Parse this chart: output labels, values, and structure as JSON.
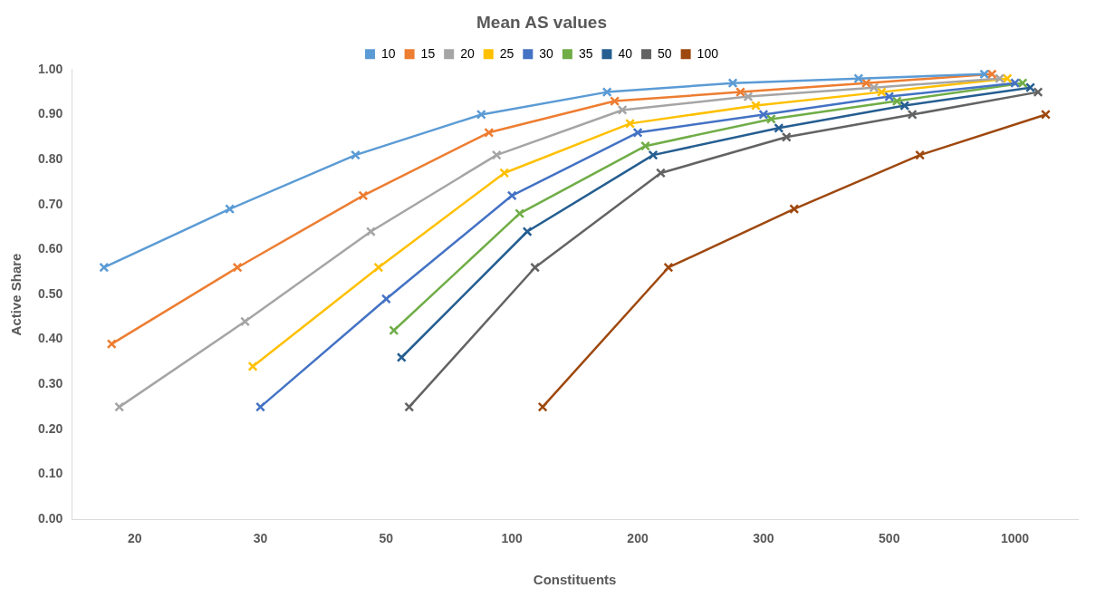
{
  "chart_data": {
    "type": "line",
    "title": "Mean AS values",
    "xlabel": "Constituents",
    "ylabel": "Active Share",
    "categories": [
      "20",
      "30",
      "50",
      "100",
      "200",
      "300",
      "500",
      "1000"
    ],
    "ylim": [
      0,
      1
    ],
    "yticks": [
      {
        "value": 0,
        "label": "0.00"
      },
      {
        "value": 0.1,
        "label": "0.10"
      },
      {
        "value": 0.2,
        "label": "0.20"
      },
      {
        "value": 0.3,
        "label": "0.30"
      },
      {
        "value": 0.4,
        "label": "0.40"
      },
      {
        "value": 0.5,
        "label": "0.50"
      },
      {
        "value": 0.6,
        "label": "0.60"
      },
      {
        "value": 0.7,
        "label": "0.70"
      },
      {
        "value": 0.8,
        "label": "0.80"
      },
      {
        "value": 0.9,
        "label": "0.90"
      },
      {
        "value": 1,
        "label": "1.00"
      }
    ],
    "grid": false,
    "legend": "top",
    "marker": "cross",
    "line_style": "solid",
    "series": [
      {
        "name": "10",
        "color": "#5b9bd5",
        "values": [
          0.56,
          0.69,
          0.81,
          0.9,
          0.95,
          0.97,
          0.98,
          0.99
        ]
      },
      {
        "name": "15",
        "color": "#ed7d31",
        "values": [
          0.39,
          0.56,
          0.72,
          0.86,
          0.93,
          0.95,
          0.97,
          0.99
        ]
      },
      {
        "name": "20",
        "color": "#a5a5a5",
        "values": [
          0.25,
          0.44,
          0.64,
          0.81,
          0.91,
          0.94,
          0.96,
          0.98
        ]
      },
      {
        "name": "25",
        "color": "#ffc000",
        "values": [
          null,
          0.34,
          0.56,
          0.77,
          0.88,
          0.92,
          0.95,
          0.98
        ]
      },
      {
        "name": "30",
        "color": "#4472c4",
        "values": [
          null,
          0.25,
          0.49,
          0.72,
          0.86,
          0.9,
          0.94,
          0.97
        ]
      },
      {
        "name": "35",
        "color": "#70ad47",
        "values": [
          null,
          null,
          0.42,
          0.68,
          0.83,
          0.89,
          0.93,
          0.97
        ]
      },
      {
        "name": "40",
        "color": "#255e91",
        "values": [
          null,
          null,
          0.36,
          0.64,
          0.81,
          0.87,
          0.92,
          0.96
        ]
      },
      {
        "name": "50",
        "color": "#636363",
        "values": [
          null,
          null,
          0.25,
          0.56,
          0.77,
          0.85,
          0.9,
          0.95
        ]
      },
      {
        "name": "100",
        "color": "#9e480e",
        "values": [
          null,
          null,
          null,
          0.25,
          0.56,
          0.69,
          0.81,
          0.9
        ]
      }
    ]
  }
}
